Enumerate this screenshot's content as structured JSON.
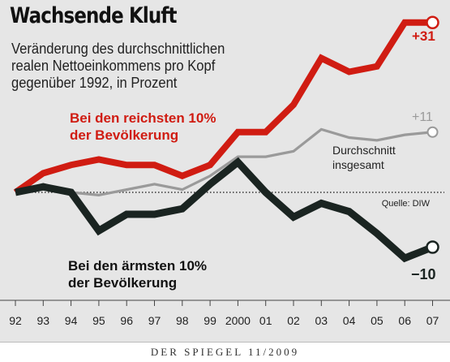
{
  "header": {
    "title": "Wachsende Kluft",
    "subtitle": "Veränderung des durchschnittlichen\nrealen Nettoeinkommens pro Kopf\ngegenüber 1992, in Prozent"
  },
  "footer": {
    "source_credit": "DER SPIEGEL 11/2009"
  },
  "source_note": "Quelle: DIW",
  "colors": {
    "rich": "#d01c12",
    "average": "#9a9a9a",
    "poor": "#1a2421",
    "background": "#e6e6e6"
  },
  "chart_data": {
    "type": "line",
    "title": "Wachsende Kluft",
    "x": [
      "92",
      "93",
      "94",
      "95",
      "96",
      "97",
      "98",
      "99",
      "2000",
      "01",
      "02",
      "03",
      "04",
      "05",
      "06",
      "07"
    ],
    "ylim": [
      -16,
      36
    ],
    "series": [
      {
        "name": "Bei den reichsten 10%\nder Bevölkerung",
        "key": "rich",
        "values": [
          0,
          3.5,
          5,
          6,
          5,
          5,
          3,
          5,
          11,
          11,
          16,
          24.5,
          22,
          23,
          31,
          31
        ],
        "end_label": "+31"
      },
      {
        "name": "Durchschnitt\ninsgesamt",
        "key": "average",
        "values": [
          0,
          1.5,
          0,
          -0.5,
          0.5,
          1.5,
          0.5,
          3,
          6.5,
          6.5,
          7.5,
          11.5,
          10,
          9.5,
          10.5,
          11
        ],
        "end_label": "+11"
      },
      {
        "name": "Bei den ärmsten 10%\nder Bevölkerung",
        "key": "poor",
        "values": [
          0,
          1,
          0,
          -7,
          -4,
          -4,
          -3,
          1.5,
          5.5,
          0,
          -4.5,
          -2,
          -3.5,
          -7.5,
          -12,
          -10
        ],
        "end_label": "−10"
      }
    ]
  }
}
